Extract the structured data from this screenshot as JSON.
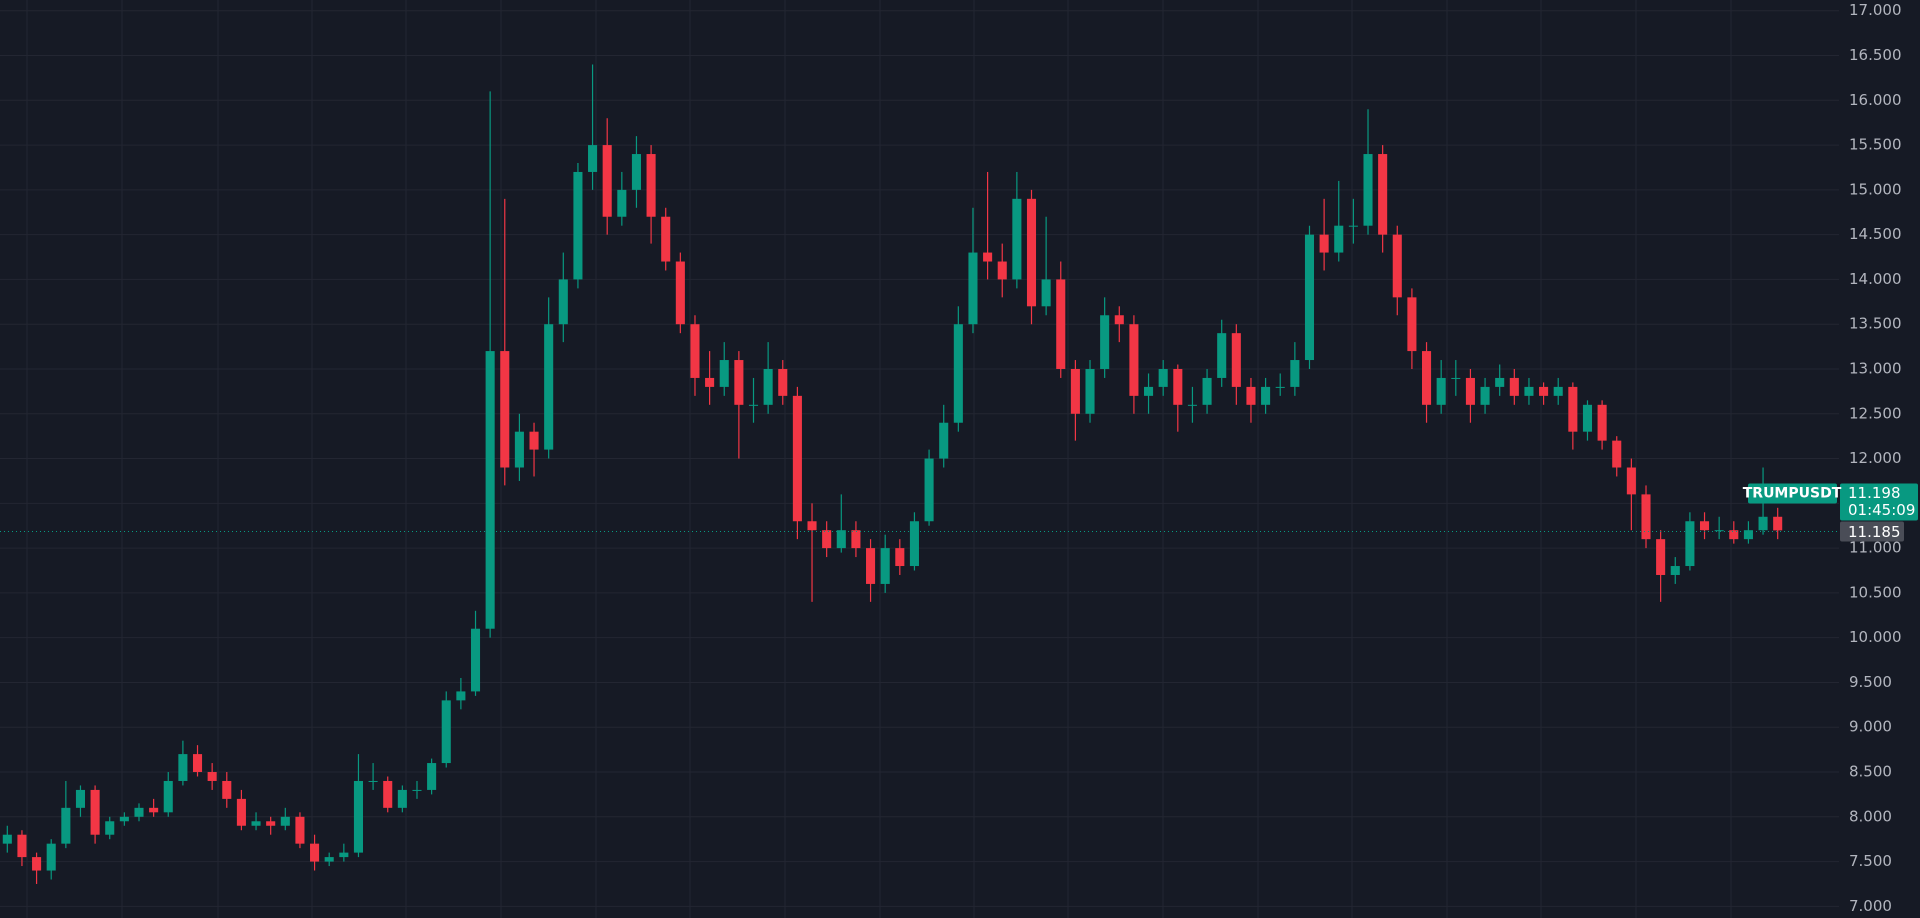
{
  "chart_data": {
    "type": "candlestick",
    "symbol": "TRUMPUSDT",
    "countdown": "01:45:09",
    "last_price": {
      "value": 11.198,
      "label": "11.198"
    },
    "crosshair_price": {
      "value": 11.185,
      "label": "11.185"
    },
    "up_color": "#089981",
    "down_color": "#f23645",
    "grid": true,
    "ylim": [
      6.87,
      17.12
    ],
    "yticks": [
      {
        "value": 7,
        "label": "7.000"
      },
      {
        "value": 7.5,
        "label": "7.500"
      },
      {
        "value": 8,
        "label": "8.000"
      },
      {
        "value": 8.5,
        "label": "8.500"
      },
      {
        "value": 9,
        "label": "9.000"
      },
      {
        "value": 9.5,
        "label": "9.500"
      },
      {
        "value": 10,
        "label": "10.000"
      },
      {
        "value": 10.5,
        "label": "10.500"
      },
      {
        "value": 11,
        "label": "11.000"
      },
      {
        "value": 11.5,
        "label": "11.500"
      },
      {
        "value": 12,
        "label": "12.000"
      },
      {
        "value": 12.5,
        "label": "12.500"
      },
      {
        "value": 13,
        "label": "13.000"
      },
      {
        "value": 13.5,
        "label": "13.500"
      },
      {
        "value": 14,
        "label": "14.000"
      },
      {
        "value": 14.5,
        "label": "14.500"
      },
      {
        "value": 15,
        "label": "15.000"
      },
      {
        "value": 15.5,
        "label": "15.500"
      },
      {
        "value": 16,
        "label": "16.000"
      },
      {
        "value": 16.5,
        "label": "16.500"
      },
      {
        "value": 17,
        "label": "17.000"
      }
    ],
    "open": [
      7.7,
      7.8,
      7.55,
      7.4,
      7.7,
      8.1,
      8.3,
      7.8,
      7.95,
      8.0,
      8.1,
      8.05,
      8.4,
      8.7,
      8.5,
      8.4,
      8.2,
      7.9,
      7.95,
      7.9,
      8.0,
      7.7,
      7.5,
      7.55,
      7.6,
      8.4,
      8.4,
      8.1,
      8.3,
      8.3,
      8.6,
      9.3,
      9.4,
      10.1,
      13.2,
      11.9,
      12.3,
      12.1,
      13.5,
      14.0,
      15.2,
      15.5,
      14.7,
      15.0,
      15.4,
      14.7,
      14.2,
      13.5,
      12.9,
      12.8,
      13.1,
      12.6,
      12.6,
      13.0,
      12.7,
      11.3,
      11.2,
      11.0,
      11.2,
      11.0,
      10.6,
      11.0,
      10.8,
      11.3,
      12.0,
      12.4,
      13.5,
      14.3,
      14.2,
      14.0,
      14.9,
      13.7,
      14.0,
      13.0,
      12.5,
      13.0,
      13.6,
      13.5,
      12.7,
      12.8,
      13.0,
      12.6,
      12.6,
      12.9,
      13.4,
      12.8,
      12.6,
      12.8,
      12.8,
      13.1,
      14.5,
      14.3,
      14.6,
      14.6,
      15.4,
      14.5,
      13.8,
      13.2,
      12.6,
      12.9,
      12.9,
      12.6,
      12.8,
      12.9,
      12.7,
      12.8,
      12.7,
      12.8,
      12.3,
      12.6,
      12.2,
      11.9,
      11.6,
      11.1,
      10.7,
      10.8,
      11.3,
      11.2,
      11.2,
      11.1,
      11.2,
      11.35
    ],
    "high": [
      7.9,
      7.85,
      7.6,
      7.75,
      8.4,
      8.35,
      8.35,
      8.0,
      8.05,
      8.15,
      8.2,
      8.5,
      8.85,
      8.8,
      8.6,
      8.5,
      8.3,
      8.05,
      8.0,
      8.1,
      8.05,
      7.8,
      7.6,
      7.7,
      8.7,
      8.6,
      8.45,
      8.35,
      8.4,
      8.65,
      9.4,
      9.55,
      10.3,
      16.1,
      14.9,
      12.5,
      12.4,
      13.8,
      14.3,
      15.3,
      16.4,
      15.8,
      15.2,
      15.6,
      15.5,
      14.8,
      14.3,
      13.6,
      13.2,
      13.3,
      13.2,
      12.9,
      13.3,
      13.1,
      12.8,
      11.5,
      11.3,
      11.6,
      11.3,
      11.1,
      11.15,
      11.1,
      11.4,
      12.1,
      12.6,
      13.7,
      14.8,
      15.2,
      14.4,
      15.2,
      15.0,
      14.7,
      14.2,
      13.1,
      13.1,
      13.8,
      13.7,
      13.6,
      12.95,
      13.1,
      13.05,
      12.8,
      13.0,
      13.55,
      13.5,
      12.9,
      12.9,
      12.95,
      13.3,
      14.6,
      14.9,
      15.1,
      14.9,
      15.9,
      15.5,
      14.6,
      13.9,
      13.3,
      13.1,
      13.1,
      13.0,
      12.9,
      13.05,
      13.0,
      12.9,
      12.85,
      12.9,
      12.85,
      12.65,
      12.65,
      12.25,
      12.0,
      11.7,
      11.2,
      10.9,
      11.4,
      11.4,
      11.35,
      11.3,
      11.3,
      11.9,
      11.45
    ],
    "low": [
      7.6,
      7.45,
      7.25,
      7.3,
      7.65,
      8.0,
      7.7,
      7.75,
      7.9,
      7.95,
      8.0,
      8.0,
      8.35,
      8.45,
      8.3,
      8.1,
      7.85,
      7.85,
      7.8,
      7.85,
      7.65,
      7.4,
      7.45,
      7.5,
      7.55,
      8.3,
      8.05,
      8.05,
      8.2,
      8.25,
      8.55,
      9.2,
      9.35,
      10.0,
      11.7,
      11.75,
      11.8,
      12.0,
      13.3,
      13.9,
      15.0,
      14.5,
      14.6,
      14.8,
      14.4,
      14.1,
      13.4,
      12.7,
      12.6,
      12.7,
      12.0,
      12.4,
      12.5,
      12.6,
      11.1,
      10.4,
      10.9,
      10.95,
      10.9,
      10.4,
      10.5,
      10.7,
      10.75,
      11.25,
      11.9,
      12.3,
      13.4,
      14.0,
      13.8,
      13.9,
      13.5,
      13.6,
      12.9,
      12.2,
      12.4,
      12.9,
      13.3,
      12.5,
      12.5,
      12.7,
      12.3,
      12.4,
      12.5,
      12.8,
      12.6,
      12.4,
      12.5,
      12.7,
      12.7,
      13.0,
      14.1,
      14.2,
      14.4,
      14.5,
      14.3,
      13.6,
      13.0,
      12.4,
      12.5,
      12.7,
      12.4,
      12.5,
      12.7,
      12.6,
      12.6,
      12.6,
      12.6,
      12.1,
      12.2,
      12.1,
      11.8,
      11.2,
      11.0,
      10.4,
      10.6,
      10.75,
      11.1,
      11.1,
      11.05,
      11.05,
      11.15,
      11.1
    ],
    "close": [
      7.8,
      7.55,
      7.4,
      7.7,
      8.1,
      8.3,
      7.8,
      7.95,
      8.0,
      8.1,
      8.05,
      8.4,
      8.7,
      8.5,
      8.4,
      8.2,
      7.9,
      7.95,
      7.9,
      8.0,
      7.7,
      7.5,
      7.55,
      7.6,
      8.4,
      8.4,
      8.1,
      8.3,
      8.3,
      8.6,
      9.3,
      9.4,
      10.1,
      13.2,
      11.9,
      12.3,
      12.1,
      13.5,
      14.0,
      15.2,
      15.5,
      14.7,
      15.0,
      15.4,
      14.7,
      14.2,
      13.5,
      12.9,
      12.8,
      13.1,
      12.6,
      12.6,
      13.0,
      12.7,
      11.3,
      11.2,
      11.0,
      11.2,
      11.0,
      10.6,
      11.0,
      10.8,
      11.3,
      12.0,
      12.4,
      13.5,
      14.3,
      14.2,
      14.0,
      14.9,
      13.7,
      14.0,
      13.0,
      12.5,
      13.0,
      13.6,
      13.5,
      12.7,
      12.8,
      13.0,
      12.6,
      12.6,
      12.9,
      13.4,
      12.8,
      12.6,
      12.8,
      12.8,
      13.1,
      14.5,
      14.3,
      14.6,
      14.6,
      15.4,
      14.5,
      13.8,
      13.2,
      12.6,
      12.9,
      12.9,
      12.6,
      12.8,
      12.9,
      12.7,
      12.8,
      12.7,
      12.8,
      12.3,
      12.6,
      12.2,
      11.9,
      11.6,
      11.1,
      10.7,
      10.8,
      11.3,
      11.2,
      11.2,
      11.1,
      11.2,
      11.35,
      11.198
    ]
  }
}
